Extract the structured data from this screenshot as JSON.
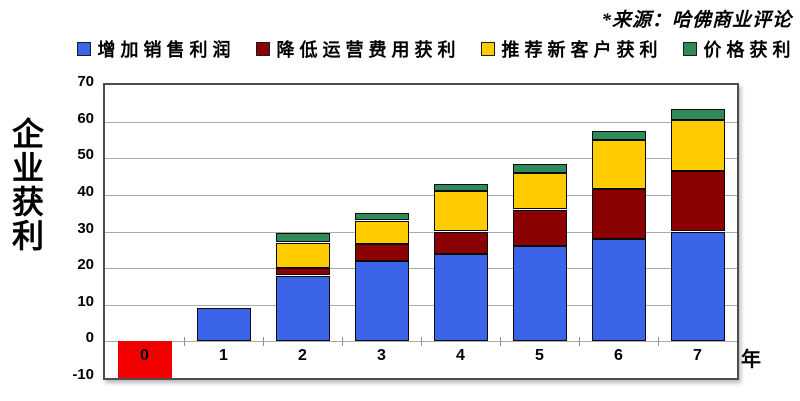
{
  "source_note": "*来源：哈佛商业评论",
  "y_axis_title": "企业获利",
  "x_axis_unit_label": "年",
  "colors": {
    "base_profit_blue": "#3C64E8",
    "cost_reduction_dark_red": "#8B0000",
    "referral_yellow": "#FFCC00",
    "price_premium_green": "#2F8C5A",
    "acquisition_loss_red": "#F20000",
    "gridline": "#ABABAB",
    "plot_border": "#4D4D4D"
  },
  "legend": {
    "items": [
      {
        "label": "增加销售利润",
        "color": "#3C64E8"
      },
      {
        "label": "降低运营费用获利",
        "color": "#8B0000"
      },
      {
        "label": "推荐新客户获利",
        "color": "#FFCC00"
      },
      {
        "label": "价格获利",
        "color": "#2F8C5A"
      }
    ]
  },
  "chart_data": {
    "type": "bar",
    "stacked": true,
    "title": "",
    "xlabel": "年",
    "ylabel": "企业获利",
    "categories": [
      "0",
      "1",
      "2",
      "3",
      "4",
      "5",
      "6",
      "7"
    ],
    "series": [
      {
        "name": "增加销售利润",
        "color": "#3C64E8",
        "values": [
          0,
          9,
          18,
          22,
          24,
          26,
          28,
          30
        ]
      },
      {
        "name": "降低运营费用获利",
        "color": "#8B0000",
        "values": [
          0,
          0,
          2,
          4.5,
          6,
          10,
          13.5,
          16.5
        ]
      },
      {
        "name": "推荐新客户获利",
        "color": "#FFCC00",
        "values": [
          0,
          0,
          7,
          6.5,
          11,
          10,
          13.5,
          14
        ]
      },
      {
        "name": "价格获利",
        "color": "#2F8C5A",
        "values": [
          0,
          0,
          2.5,
          2,
          2,
          2.5,
          2.5,
          3
        ]
      }
    ],
    "stack_totals": [
      -10,
      9,
      29.5,
      35,
      43,
      48.5,
      57.5,
      63.5
    ],
    "negative_bar": {
      "category": "0",
      "value": -10,
      "color": "#F20000"
    },
    "ylim": [
      -10,
      70
    ],
    "yticks": [
      70,
      60,
      50,
      40,
      30,
      20,
      10,
      0,
      -10
    ],
    "grid": "horizontal",
    "legend_position": "top"
  }
}
